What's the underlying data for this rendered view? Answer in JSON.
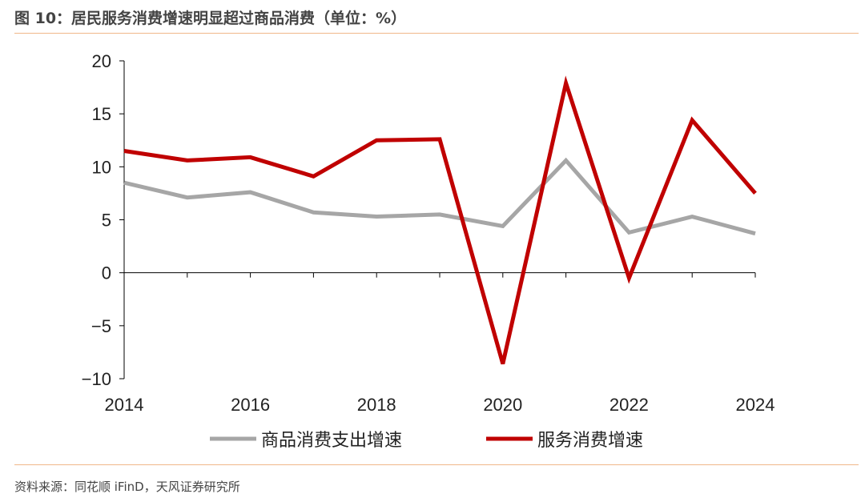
{
  "title": "图 10：居民服务消费增速明显超过商品消费（单位：%）",
  "source": "资料来源：同花顺 iFinD，天风证券研究所",
  "chart_data": {
    "type": "line",
    "x": [
      2014,
      2015,
      2016,
      2017,
      2018,
      2019,
      2020,
      2021,
      2022,
      2023,
      2024
    ],
    "xticks": [
      "2014",
      "2016",
      "2018",
      "2020",
      "2022",
      "2024"
    ],
    "yticks": [
      "20",
      "15",
      "10",
      "5",
      "0",
      "−5",
      "−10"
    ],
    "ylim": [
      -10,
      20
    ],
    "xlim": [
      2014,
      2024
    ],
    "grid": false,
    "legend": "bottom",
    "series": [
      {
        "name": "商品消费支出增速",
        "color": "#a6a6a6",
        "values": [
          8.5,
          7.1,
          7.6,
          5.7,
          5.3,
          5.5,
          4.4,
          10.6,
          3.8,
          5.3,
          3.7
        ]
      },
      {
        "name": "服务消费增速",
        "color": "#c00000",
        "values": [
          11.5,
          10.6,
          10.9,
          9.1,
          12.5,
          12.6,
          -8.6,
          17.9,
          -0.5,
          14.4,
          7.5
        ]
      }
    ]
  }
}
